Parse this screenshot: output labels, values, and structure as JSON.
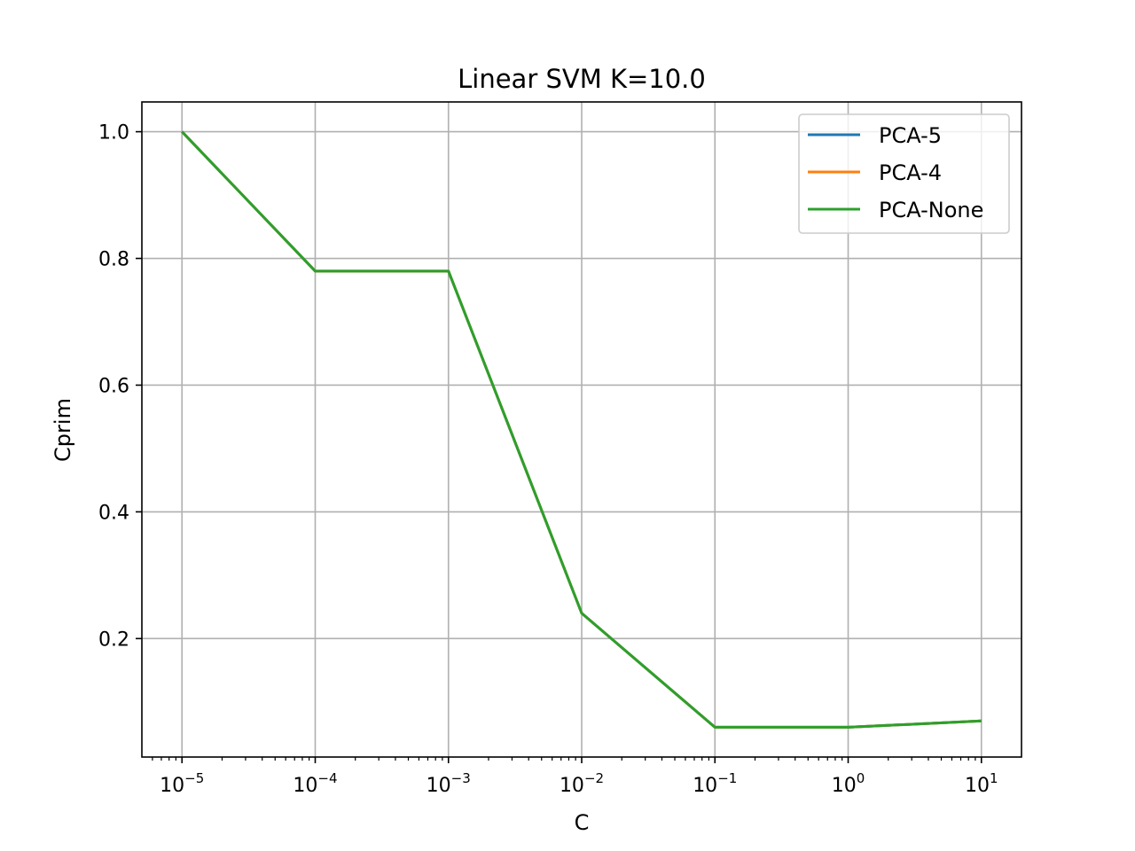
{
  "chart_data": {
    "type": "line",
    "title": "Linear SVM K=10.0",
    "xlabel": "C",
    "ylabel": "Cprim",
    "xscale": "log",
    "xlim": [
      5e-06,
      20
    ],
    "ylim": [
      0.013,
      1.047
    ],
    "x": [
      1e-05,
      0.0001,
      0.001,
      0.01,
      0.1,
      1,
      10
    ],
    "xticks": [
      {
        "value": 1e-05,
        "base": "10",
        "exp": "−5"
      },
      {
        "value": 0.0001,
        "base": "10",
        "exp": "−4"
      },
      {
        "value": 0.001,
        "base": "10",
        "exp": "−3"
      },
      {
        "value": 0.01,
        "base": "10",
        "exp": "−2"
      },
      {
        "value": 0.1,
        "base": "10",
        "exp": "−1"
      },
      {
        "value": 1,
        "base": "10",
        "exp": "0"
      },
      {
        "value": 10,
        "base": "10",
        "exp": "1"
      }
    ],
    "yticks": [
      0.2,
      0.4,
      0.6,
      0.8,
      1.0
    ],
    "ytick_labels": [
      "0.2",
      "0.4",
      "0.6",
      "0.8",
      "1.0"
    ],
    "grid": true,
    "legend_position": "top-right",
    "series": [
      {
        "name": "PCA-5",
        "color": "#1f77b4",
        "values": [
          1.0,
          0.78,
          0.78,
          0.24,
          0.06,
          0.06,
          0.07
        ]
      },
      {
        "name": "PCA-4",
        "color": "#ff7f0e",
        "values": [
          1.0,
          0.78,
          0.78,
          0.24,
          0.06,
          0.06,
          0.07
        ]
      },
      {
        "name": "PCA-None",
        "color": "#2ca02c",
        "values": [
          1.0,
          0.78,
          0.78,
          0.24,
          0.06,
          0.06,
          0.07
        ]
      }
    ]
  }
}
